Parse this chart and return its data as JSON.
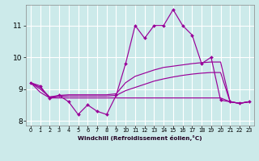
{
  "xlabel": "Windchill (Refroidissement éolien,°C)",
  "bg_color": "#cceaea",
  "line_color": "#990099",
  "grid_color": "#aadddd",
  "x_data": [
    0,
    1,
    2,
    3,
    4,
    5,
    6,
    7,
    8,
    9,
    10,
    11,
    12,
    13,
    14,
    15,
    16,
    17,
    18,
    19,
    20,
    21,
    22,
    23
  ],
  "main_line": [
    9.2,
    9.1,
    8.7,
    8.8,
    8.6,
    8.2,
    8.5,
    8.3,
    8.2,
    8.8,
    9.8,
    11.0,
    10.6,
    11.0,
    11.0,
    11.5,
    11.0,
    10.7,
    9.8,
    10.0,
    8.65,
    8.6,
    8.55,
    8.6
  ],
  "line2": [
    9.2,
    9.05,
    8.75,
    8.8,
    8.82,
    8.82,
    8.82,
    8.82,
    8.82,
    8.85,
    9.2,
    9.4,
    9.5,
    9.6,
    9.68,
    9.72,
    9.76,
    9.8,
    9.83,
    9.85,
    9.85,
    8.6,
    8.55,
    8.6
  ],
  "line3": [
    9.2,
    9.0,
    8.75,
    8.77,
    8.78,
    8.78,
    8.78,
    8.78,
    8.78,
    8.8,
    8.95,
    9.05,
    9.15,
    9.25,
    9.32,
    9.38,
    9.43,
    9.47,
    9.5,
    9.52,
    9.52,
    8.6,
    8.55,
    8.6
  ],
  "line4": [
    9.2,
    8.9,
    8.72,
    8.72,
    8.72,
    8.72,
    8.72,
    8.72,
    8.72,
    8.72,
    8.72,
    8.72,
    8.72,
    8.72,
    8.72,
    8.72,
    8.72,
    8.72,
    8.72,
    8.72,
    8.72,
    8.6,
    8.55,
    8.6
  ],
  "ylim": [
    7.85,
    11.65
  ],
  "yticks": [
    8,
    9,
    10,
    11
  ],
  "xticks": [
    0,
    1,
    2,
    3,
    4,
    5,
    6,
    7,
    8,
    9,
    10,
    11,
    12,
    13,
    14,
    15,
    16,
    17,
    18,
    19,
    20,
    21,
    22,
    23
  ]
}
